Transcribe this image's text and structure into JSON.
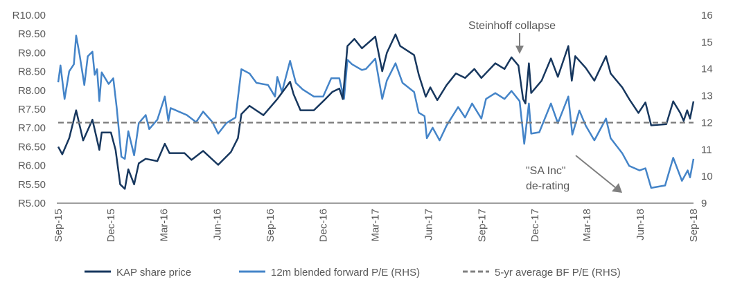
{
  "chart_data": {
    "type": "line",
    "title": "",
    "xlabel": "",
    "ylabel": "",
    "xlim": [
      "2015-09-01",
      "2018-09-01"
    ],
    "ylim_left": [
      5,
      10
    ],
    "ylim_right": [
      9,
      16
    ],
    "grid": false,
    "legend_position": "bottom",
    "x_tick_labels": [
      "Sep-15",
      "Dec-15",
      "Mar-16",
      "Jun-16",
      "Sep-16",
      "Dec-16",
      "Mar-17",
      "Jun-17",
      "Sep-17",
      "Dec-17",
      "Mar-18",
      "Jun-18",
      "Sep-18"
    ],
    "x_tick_dates": [
      "2015-09-01",
      "2015-12-01",
      "2016-03-01",
      "2016-06-01",
      "2016-09-01",
      "2016-12-01",
      "2017-03-01",
      "2017-06-01",
      "2017-09-01",
      "2017-12-01",
      "2018-03-01",
      "2018-06-01",
      "2018-09-01"
    ],
    "left_tick_labels": [
      "R10.00",
      "R9.50",
      "R9.00",
      "R8.50",
      "R8.00",
      "R7.50",
      "R7.00",
      "R6.50",
      "R6.00",
      "R5.50",
      "R5.00"
    ],
    "left_tick_values": [
      10,
      9.5,
      9,
      8.5,
      8,
      7.5,
      7,
      6.5,
      6,
      5.5,
      5
    ],
    "right_tick_labels": [
      "16",
      "15",
      "14",
      "13",
      "12",
      "11",
      "10",
      "9"
    ],
    "right_tick_values": [
      16,
      15,
      14,
      13,
      12,
      11,
      10,
      9
    ],
    "series": [
      {
        "name": "KAP share price",
        "axis": "left",
        "color": "#17375E",
        "style": "solid",
        "points": [
          [
            "2015-09-01",
            6.5
          ],
          [
            "2015-09-08",
            6.3
          ],
          [
            "2015-09-20",
            6.73
          ],
          [
            "2015-10-02",
            7.47
          ],
          [
            "2015-10-14",
            6.67
          ],
          [
            "2015-10-30",
            7.22
          ],
          [
            "2015-11-11",
            6.42
          ],
          [
            "2015-11-15",
            6.88
          ],
          [
            "2015-12-01",
            6.88
          ],
          [
            "2015-12-09",
            6.42
          ],
          [
            "2015-12-17",
            5.5
          ],
          [
            "2015-12-25",
            5.38
          ],
          [
            "2015-12-31",
            5.9
          ],
          [
            "2016-01-10",
            5.5
          ],
          [
            "2016-01-18",
            6.06
          ],
          [
            "2016-01-30",
            6.18
          ],
          [
            "2016-02-19",
            6.12
          ],
          [
            "2016-03-03",
            6.58
          ],
          [
            "2016-03-11",
            6.33
          ],
          [
            "2016-04-06",
            6.33
          ],
          [
            "2016-04-18",
            6.15
          ],
          [
            "2016-05-08",
            6.39
          ],
          [
            "2016-06-03",
            6.02
          ],
          [
            "2016-06-25",
            6.36
          ],
          [
            "2016-07-07",
            6.73
          ],
          [
            "2016-07-13",
            7.37
          ],
          [
            "2016-07-27",
            7.59
          ],
          [
            "2016-08-20",
            7.34
          ],
          [
            "2016-09-13",
            7.77
          ],
          [
            "2016-10-05",
            8.23
          ],
          [
            "2016-10-11",
            7.9
          ],
          [
            "2016-10-23",
            7.47
          ],
          [
            "2016-11-15",
            7.47
          ],
          [
            "2016-12-05",
            7.77
          ],
          [
            "2016-12-17",
            7.96
          ],
          [
            "2016-12-29",
            8.05
          ],
          [
            "2017-01-04",
            7.77
          ],
          [
            "2017-01-12",
            9.18
          ],
          [
            "2017-01-24",
            9.37
          ],
          [
            "2017-02-06",
            9.12
          ],
          [
            "2017-03-01",
            9.43
          ],
          [
            "2017-03-13",
            8.51
          ],
          [
            "2017-03-21",
            9.0
          ],
          [
            "2017-04-05",
            9.49
          ],
          [
            "2017-04-13",
            9.18
          ],
          [
            "2017-05-07",
            8.94
          ],
          [
            "2017-05-15",
            8.42
          ],
          [
            "2017-05-27",
            7.83
          ],
          [
            "2017-06-04",
            8.08
          ],
          [
            "2017-06-16",
            7.74
          ],
          [
            "2017-07-02",
            8.14
          ],
          [
            "2017-07-18",
            8.45
          ],
          [
            "2017-08-03",
            8.33
          ],
          [
            "2017-08-19",
            8.57
          ],
          [
            "2017-08-31",
            8.33
          ],
          [
            "2017-09-24",
            8.72
          ],
          [
            "2017-10-10",
            8.57
          ],
          [
            "2017-10-22",
            8.88
          ],
          [
            "2017-11-03",
            8.66
          ],
          [
            "2017-11-11",
            7.77
          ],
          [
            "2017-11-15",
            7.65
          ],
          [
            "2017-11-21",
            8.72
          ],
          [
            "2017-11-25",
            7.93
          ],
          [
            "2017-12-13",
            8.26
          ],
          [
            "2017-12-29",
            8.85
          ],
          [
            "2018-01-10",
            8.36
          ],
          [
            "2018-01-28",
            9.18
          ],
          [
            "2018-02-03",
            8.26
          ],
          [
            "2018-02-09",
            8.91
          ],
          [
            "2018-02-27",
            8.6
          ],
          [
            "2018-03-14",
            8.26
          ],
          [
            "2018-04-03",
            8.91
          ],
          [
            "2018-04-11",
            8.45
          ],
          [
            "2018-05-01",
            8.08
          ],
          [
            "2018-05-13",
            7.77
          ],
          [
            "2018-05-29",
            7.4
          ],
          [
            "2018-06-10",
            7.68
          ],
          [
            "2018-06-20",
            7.07
          ],
          [
            "2018-07-16",
            7.1
          ],
          [
            "2018-07-28",
            7.71
          ],
          [
            "2018-08-09",
            7.4
          ],
          [
            "2018-08-15",
            7.19
          ],
          [
            "2018-08-21",
            7.47
          ],
          [
            "2018-08-26",
            7.25
          ],
          [
            "2018-09-01",
            7.71
          ]
        ]
      },
      {
        "name": "12m blended forward P/E (RHS)",
        "axis": "right",
        "color": "#4484C8",
        "style": "solid",
        "points": [
          [
            "2015-09-01",
            13.5
          ],
          [
            "2015-09-05",
            14.13
          ],
          [
            "2015-09-12",
            12.88
          ],
          [
            "2015-09-20",
            13.91
          ],
          [
            "2015-09-28",
            14.17
          ],
          [
            "2015-10-02",
            15.24
          ],
          [
            "2015-10-08",
            14.51
          ],
          [
            "2015-10-16",
            13.4
          ],
          [
            "2015-10-22",
            14.47
          ],
          [
            "2015-10-30",
            14.64
          ],
          [
            "2015-11-03",
            13.78
          ],
          [
            "2015-11-07",
            13.99
          ],
          [
            "2015-11-11",
            12.8
          ],
          [
            "2015-11-15",
            13.87
          ],
          [
            "2015-11-27",
            13.44
          ],
          [
            "2015-12-05",
            13.65
          ],
          [
            "2015-12-11",
            12.54
          ],
          [
            "2015-12-19",
            10.73
          ],
          [
            "2015-12-25",
            10.65
          ],
          [
            "2015-12-31",
            11.68
          ],
          [
            "2016-01-10",
            10.78
          ],
          [
            "2016-01-18",
            11.98
          ],
          [
            "2016-01-30",
            12.28
          ],
          [
            "2016-02-05",
            11.76
          ],
          [
            "2016-02-19",
            12.11
          ],
          [
            "2016-03-03",
            12.97
          ],
          [
            "2016-03-09",
            12.07
          ],
          [
            "2016-03-13",
            12.54
          ],
          [
            "2016-04-10",
            12.28
          ],
          [
            "2016-04-26",
            12.02
          ],
          [
            "2016-05-08",
            12.41
          ],
          [
            "2016-05-24",
            12.02
          ],
          [
            "2016-06-03",
            11.59
          ],
          [
            "2016-06-17",
            11.98
          ],
          [
            "2016-07-03",
            12.19
          ],
          [
            "2016-07-13",
            13.99
          ],
          [
            "2016-07-27",
            13.83
          ],
          [
            "2016-08-08",
            13.48
          ],
          [
            "2016-08-28",
            13.4
          ],
          [
            "2016-09-09",
            12.97
          ],
          [
            "2016-09-13",
            13.7
          ],
          [
            "2016-09-21",
            13.14
          ],
          [
            "2016-10-05",
            14.3
          ],
          [
            "2016-10-15",
            13.48
          ],
          [
            "2016-10-27",
            13.23
          ],
          [
            "2016-11-15",
            12.97
          ],
          [
            "2016-12-01",
            12.97
          ],
          [
            "2016-12-15",
            13.65
          ],
          [
            "2016-12-29",
            13.65
          ],
          [
            "2017-01-06",
            12.88
          ],
          [
            "2017-01-12",
            14.34
          ],
          [
            "2017-01-20",
            14.17
          ],
          [
            "2017-02-06",
            13.96
          ],
          [
            "2017-02-13",
            14.0
          ],
          [
            "2017-03-01",
            14.38
          ],
          [
            "2017-03-13",
            12.88
          ],
          [
            "2017-03-21",
            13.57
          ],
          [
            "2017-04-05",
            14.21
          ],
          [
            "2017-04-17",
            13.48
          ],
          [
            "2017-05-07",
            13.14
          ],
          [
            "2017-05-15",
            12.37
          ],
          [
            "2017-05-25",
            12.24
          ],
          [
            "2017-05-29",
            11.42
          ],
          [
            "2017-06-08",
            11.81
          ],
          [
            "2017-06-20",
            11.34
          ],
          [
            "2017-07-02",
            11.89
          ],
          [
            "2017-07-22",
            12.58
          ],
          [
            "2017-08-03",
            12.19
          ],
          [
            "2017-08-15",
            12.71
          ],
          [
            "2017-08-31",
            12.15
          ],
          [
            "2017-09-08",
            12.88
          ],
          [
            "2017-09-24",
            13.1
          ],
          [
            "2017-10-10",
            12.88
          ],
          [
            "2017-10-22",
            13.18
          ],
          [
            "2017-11-05",
            12.8
          ],
          [
            "2017-11-13",
            11.21
          ],
          [
            "2017-11-21",
            12.71
          ],
          [
            "2017-11-25",
            11.59
          ],
          [
            "2017-12-09",
            11.64
          ],
          [
            "2017-12-29",
            12.71
          ],
          [
            "2018-01-10",
            11.98
          ],
          [
            "2018-01-28",
            12.97
          ],
          [
            "2018-02-04",
            11.55
          ],
          [
            "2018-02-16",
            12.45
          ],
          [
            "2018-02-27",
            11.89
          ],
          [
            "2018-03-14",
            11.34
          ],
          [
            "2018-04-03",
            12.15
          ],
          [
            "2018-04-11",
            11.42
          ],
          [
            "2018-05-01",
            10.86
          ],
          [
            "2018-05-13",
            10.39
          ],
          [
            "2018-05-31",
            10.22
          ],
          [
            "2018-06-10",
            10.3
          ],
          [
            "2018-06-20",
            9.57
          ],
          [
            "2018-07-14",
            9.66
          ],
          [
            "2018-07-28",
            10.69
          ],
          [
            "2018-08-12",
            9.83
          ],
          [
            "2018-08-22",
            10.22
          ],
          [
            "2018-08-26",
            9.96
          ],
          [
            "2018-09-01",
            10.65
          ]
        ]
      },
      {
        "name": "5-yr average BF P/E (RHS)",
        "axis": "right",
        "color": "#808080",
        "style": "dashed",
        "points": [
          [
            "2015-09-01",
            12.0
          ],
          [
            "2018-09-01",
            12.0
          ]
        ]
      }
    ],
    "annotations": [
      {
        "text": "Steinhoff collapse",
        "date": "2017-11-08"
      },
      {
        "text_lines": [
          "\"SA Inc\"",
          "de-rating"
        ]
      }
    ]
  }
}
